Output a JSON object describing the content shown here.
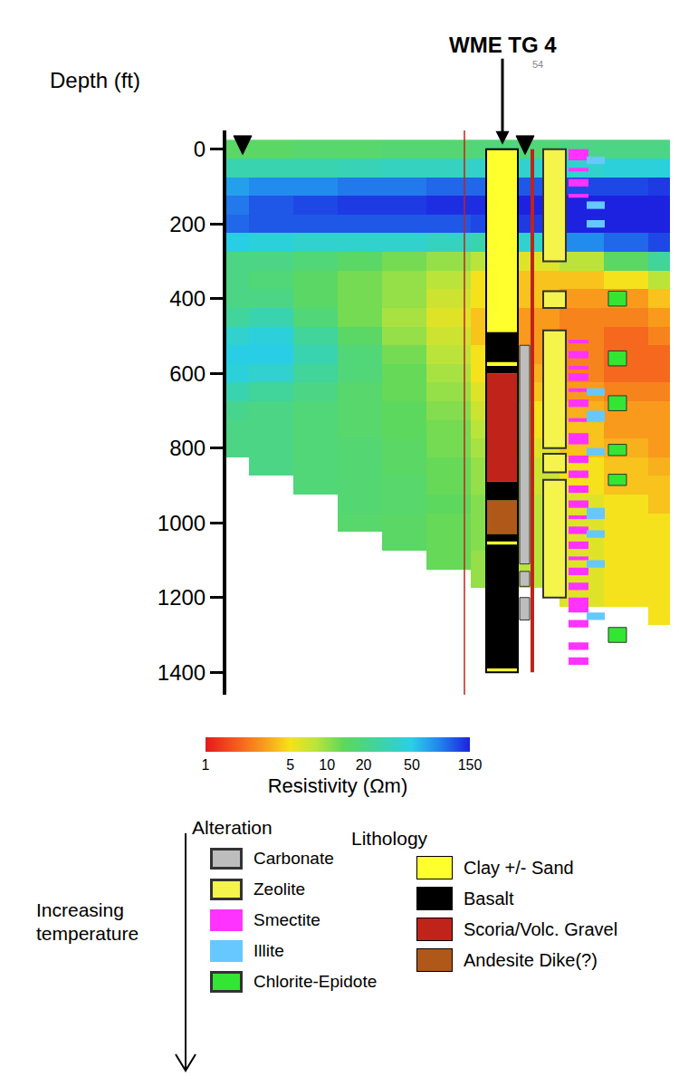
{
  "chart_data": {
    "type": "heatmap",
    "well_label": "WME TG 4",
    "well_sublabel": "54",
    "y_label": "Depth (ft)",
    "ylim": [
      1460,
      -50
    ],
    "yticks": [
      0,
      200,
      400,
      600,
      800,
      1000,
      1200,
      1400
    ],
    "xlim": [
      0,
      100
    ],
    "grid": false,
    "tick_labels": "y",
    "x": [
      0,
      10,
      20,
      30,
      40,
      50,
      60,
      70,
      80,
      90,
      100
    ],
    "y": [
      0,
      50,
      100,
      150,
      200,
      250,
      300,
      350,
      400,
      450,
      500,
      550,
      600,
      650,
      700,
      750,
      800,
      850,
      900,
      950,
      1000,
      1050,
      1100,
      1150,
      1200,
      1250,
      1300,
      1350,
      1400
    ],
    "z": [
      [
        15,
        15,
        16,
        16,
        17,
        17,
        18,
        18,
        20,
        20,
        20
      ],
      [
        30,
        30,
        30,
        32,
        35,
        35,
        38,
        40,
        40,
        45,
        45
      ],
      [
        70,
        80,
        80,
        90,
        90,
        100,
        100,
        110,
        120,
        120,
        130
      ],
      [
        90,
        110,
        120,
        130,
        130,
        140,
        140,
        150,
        150,
        150,
        150
      ],
      [
        100,
        110,
        110,
        110,
        110,
        110,
        120,
        130,
        150,
        150,
        150
      ],
      [
        50,
        45,
        40,
        40,
        40,
        35,
        30,
        40,
        80,
        100,
        120
      ],
      [
        20,
        20,
        18,
        15,
        12,
        10,
        8,
        6,
        8,
        15,
        25
      ],
      [
        20,
        18,
        15,
        12,
        10,
        8,
        5,
        4,
        4,
        5,
        8
      ],
      [
        20,
        20,
        15,
        12,
        10,
        7,
        5,
        4,
        3,
        3,
        4
      ],
      [
        25,
        30,
        18,
        12,
        9,
        6,
        4,
        3,
        2.5,
        2.5,
        3
      ],
      [
        40,
        45,
        25,
        15,
        10,
        7,
        4,
        3,
        2.5,
        2,
        2.5
      ],
      [
        50,
        50,
        30,
        18,
        12,
        8,
        5,
        3,
        2.5,
        2,
        2
      ],
      [
        45,
        40,
        25,
        18,
        13,
        9,
        5,
        3.5,
        2.5,
        2,
        2
      ],
      [
        30,
        25,
        20,
        16,
        13,
        10,
        6,
        4,
        3,
        2.5,
        2.5
      ],
      [
        22,
        20,
        18,
        16,
        14,
        11,
        7,
        5,
        3.5,
        3,
        3
      ],
      [
        20,
        20,
        18,
        16,
        14,
        12,
        8,
        5,
        4,
        3,
        3
      ],
      [
        20,
        20,
        18,
        17,
        15,
        12,
        9,
        6,
        4,
        3.5,
        3
      ],
      [
        null,
        20,
        18,
        17,
        15,
        13,
        10,
        7,
        5,
        4,
        3.5
      ],
      [
        null,
        null,
        18,
        17,
        16,
        13,
        10,
        7,
        5,
        4,
        4
      ],
      [
        null,
        null,
        null,
        17,
        16,
        14,
        11,
        8,
        6,
        5,
        4
      ],
      [
        null,
        null,
        null,
        16,
        15,
        13,
        11,
        8,
        6,
        5,
        5
      ],
      [
        null,
        null,
        null,
        null,
        15,
        13,
        11,
        8,
        6,
        5,
        5
      ],
      [
        null,
        null,
        null,
        null,
        null,
        13,
        10,
        8,
        6,
        5,
        5
      ],
      [
        null,
        null,
        null,
        null,
        null,
        null,
        10,
        8,
        6,
        5,
        5
      ],
      [
        null,
        null,
        null,
        null,
        null,
        null,
        null,
        null,
        6,
        5,
        5
      ],
      [
        null,
        null,
        null,
        null,
        null,
        null,
        null,
        null,
        null,
        null,
        5
      ],
      [
        null,
        null,
        null,
        null,
        null,
        null,
        null,
        null,
        null,
        null,
        null
      ],
      [
        null,
        null,
        null,
        null,
        null,
        null,
        null,
        null,
        null,
        null,
        null
      ],
      [
        null,
        null,
        null,
        null,
        null,
        null,
        null,
        null,
        null,
        null,
        null
      ]
    ],
    "colorbar": {
      "title": "Resistivity (Ωm)",
      "range": [
        1,
        150
      ],
      "ticks": [
        1,
        5,
        10,
        20,
        50,
        150
      ],
      "log": true
    },
    "alteration": {
      "title": "Alteration",
      "arrow_label": "Increasing temperature",
      "units": [
        {
          "name": "Carbonate",
          "color": "#bdbdbd",
          "intervals": [
            [
              525,
              1110
            ],
            [
              1130,
              1170
            ],
            [
              1200,
              1260
            ]
          ]
        },
        {
          "name": "Zeolite",
          "color": "#f4f44c",
          "intervals": [
            [
              0,
              300
            ],
            [
              380,
              425
            ],
            [
              485,
              800
            ],
            [
              815,
              865
            ],
            [
              885,
              1200
            ]
          ]
        },
        {
          "name": "Smectite",
          "color": "#ff33ff",
          "intervals": [
            [
              0,
              30
            ],
            [
              50,
              60
            ],
            [
              80,
              100
            ],
            [
              120,
              130
            ],
            [
              510,
              520
            ],
            [
              540,
              560
            ],
            [
              580,
              590
            ],
            [
              600,
              620
            ],
            [
              640,
              650
            ],
            [
              670,
              690
            ],
            [
              720,
              730
            ],
            [
              760,
              790
            ],
            [
              820,
              840
            ],
            [
              860,
              880
            ],
            [
              900,
              920
            ],
            [
              940,
              960
            ],
            [
              980,
              990
            ],
            [
              1010,
              1030
            ],
            [
              1050,
              1070
            ],
            [
              1090,
              1100
            ],
            [
              1120,
              1140
            ],
            [
              1160,
              1180
            ],
            [
              1200,
              1240
            ],
            [
              1260,
              1280
            ],
            [
              1320,
              1340
            ],
            [
              1360,
              1380
            ]
          ]
        },
        {
          "name": "Illite",
          "color": "#66c8ff",
          "intervals": [
            [
              20,
              40
            ],
            [
              140,
              160
            ],
            [
              190,
              210
            ],
            [
              640,
              660
            ],
            [
              700,
              730
            ],
            [
              800,
              820
            ],
            [
              960,
              990
            ],
            [
              1020,
              1040
            ],
            [
              1100,
              1120
            ],
            [
              1240,
              1260
            ]
          ]
        },
        {
          "name": "Chlorite-Epidote",
          "color": "#33e633",
          "intervals": [
            [
              380,
              420
            ],
            [
              540,
              580
            ],
            [
              660,
              700
            ],
            [
              790,
              820
            ],
            [
              870,
              900
            ],
            [
              1280,
              1320
            ]
          ]
        }
      ]
    },
    "lithology": {
      "title": "Lithology",
      "units": [
        {
          "name": "Clay +/- Sand",
          "color": "#ffff2e",
          "intervals": [
            [
              0,
              490
            ],
            [
              570,
              580
            ],
            [
              1050,
              1058
            ],
            [
              1390,
              1400
            ]
          ]
        },
        {
          "name": "Basalt",
          "color": "#000000",
          "intervals": [
            [
              490,
              570
            ],
            [
              580,
              600
            ],
            [
              890,
              940
            ],
            [
              1030,
              1050
            ],
            [
              1058,
              1390
            ]
          ]
        },
        {
          "name": "Scoria/Volc. Gravel",
          "color": "#c0231a",
          "intervals": [
            [
              600,
              890
            ]
          ]
        },
        {
          "name": "Andesite Dike(?)",
          "color": "#b0581a",
          "intervals": [
            [
              940,
              1030
            ]
          ]
        }
      ]
    }
  }
}
